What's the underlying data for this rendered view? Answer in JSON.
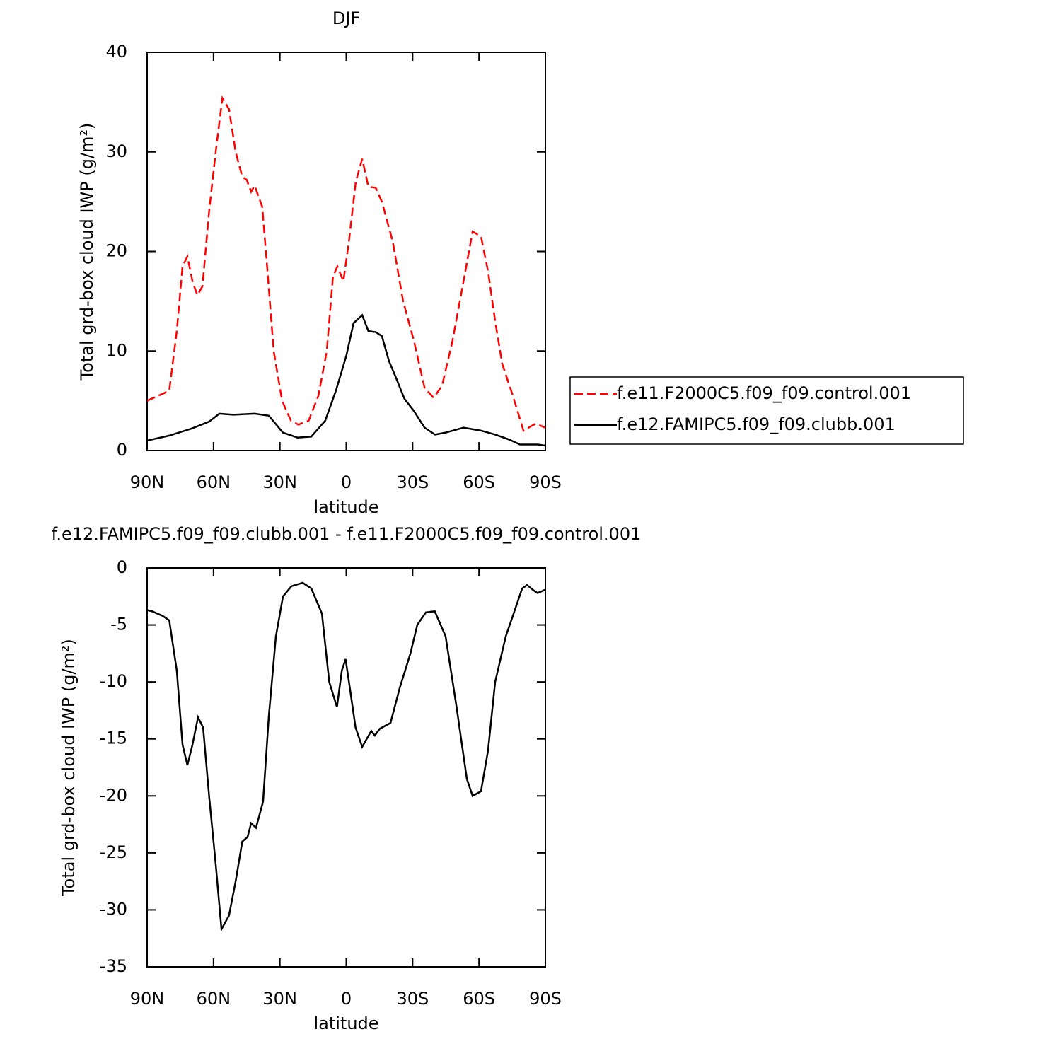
{
  "chart_data": [
    {
      "type": "line",
      "title": "DJF",
      "xlabel": "latitude",
      "ylabel": "Total grd-box cloud IWP (g/m²)",
      "xlim": [
        90,
        -90
      ],
      "xticks": [
        {
          "value": 90,
          "label": "90N"
        },
        {
          "value": 60,
          "label": "60N"
        },
        {
          "value": 30,
          "label": "30N"
        },
        0,
        {
          "value": -30,
          "label": "30S"
        },
        {
          "value": -60,
          "label": "60S"
        },
        {
          "value": -90,
          "label": "90S"
        }
      ],
      "ylim": [
        0,
        40
      ],
      "yticks": [
        0,
        10,
        20,
        30,
        40
      ],
      "series": [
        {
          "name": "f.e11.F2000C5.f09_f09.control.001",
          "color": "#ff0000",
          "dashed": true,
          "x": [
            90,
            80,
            76.6,
            74,
            71.8,
            69.5,
            67.3,
            65,
            62,
            59,
            56,
            53,
            50,
            47,
            45,
            43,
            41.4,
            38,
            35.6,
            32.8,
            29,
            25,
            21.6,
            17,
            12.6,
            8.8,
            6,
            4,
            1.3,
            -1.2,
            -4.3,
            -7.2,
            -10,
            -13.3,
            -16.1,
            -21,
            -25.7,
            -30.6,
            -35.4,
            -39.5,
            -43.3,
            -48,
            -53,
            -57.1,
            -60.9,
            -64.1,
            -67.3,
            -70.5,
            -75.3,
            -80.1,
            -84,
            -85.7,
            -90
          ],
          "values": [
            5.0,
            6.0,
            12,
            18.5,
            19.5,
            17,
            15.6,
            16.5,
            24,
            30,
            35.4,
            34.3,
            30,
            27.5,
            27.2,
            26,
            26.6,
            24.5,
            18,
            10,
            5,
            3,
            2.6,
            3,
            5.5,
            10,
            17.5,
            18.5,
            17,
            21,
            27,
            29.3,
            26.5,
            26.4,
            25,
            21,
            15,
            11,
            6.3,
            5.3,
            6.5,
            11,
            17,
            22,
            21.5,
            18,
            13,
            8.7,
            5.5,
            2,
            2.5,
            2.7,
            2.3
          ]
        },
        {
          "name": "f.e12.FAMIPC5.f09_f09.clubb.001",
          "color": "#000000",
          "dashed": false,
          "x": [
            90,
            80,
            70,
            62,
            57.4,
            51,
            41.4,
            35,
            28.6,
            22,
            15.8,
            9.5,
            4.7,
            0,
            -3.3,
            -7.2,
            -10,
            -13.3,
            -16.1,
            -19.3,
            -22.5,
            -26.3,
            -30.5,
            -35.4,
            -40.1,
            -44.9,
            -53,
            -60.9,
            -67.3,
            -73.7,
            -78.5,
            -86.5,
            -90
          ],
          "values": [
            1.0,
            1.5,
            2.2,
            2.9,
            3.7,
            3.6,
            3.7,
            3.5,
            1.8,
            1.3,
            1.4,
            3.0,
            6.0,
            9.5,
            12.8,
            13.6,
            12.0,
            11.9,
            11.5,
            9,
            7.3,
            5.2,
            4,
            2.3,
            1.6,
            1.8,
            2.3,
            2.0,
            1.6,
            1.1,
            0.6,
            0.6,
            0.5
          ]
        }
      ]
    },
    {
      "type": "line",
      "title": "f.e12.FAMIPC5.f09_f09.clubb.001 - f.e11.F2000C5.f09_f09.control.001",
      "xlabel": "latitude",
      "ylabel": "Total grd-box cloud IWP (g/m²)",
      "xlim": [
        90,
        -90
      ],
      "xticks": [
        {
          "value": 90,
          "label": "90N"
        },
        {
          "value": 60,
          "label": "60N"
        },
        {
          "value": 30,
          "label": "30N"
        },
        0,
        {
          "value": -30,
          "label": "30S"
        },
        {
          "value": -60,
          "label": "60S"
        },
        {
          "value": -90,
          "label": "90S"
        }
      ],
      "ylim": [
        -35,
        0
      ],
      "yticks": [
        0,
        -5,
        -10,
        -15,
        -20,
        -25,
        -30,
        -35
      ],
      "series": [
        {
          "color": "#000000",
          "dashed": false,
          "x": [
            90,
            87.8,
            83,
            80,
            76.6,
            74,
            71.8,
            69.5,
            67,
            64.7,
            62,
            59,
            56.4,
            53,
            50,
            47,
            44.6,
            43,
            40.8,
            37.6,
            35,
            31.8,
            28.6,
            24.8,
            19.7,
            15.8,
            11,
            7.7,
            4.2,
            2,
            0.3,
            -1.6,
            -4.2,
            -7.2,
            -11.3,
            -12.9,
            -15.2,
            -20,
            -24.2,
            -29,
            -32.1,
            -36,
            -40,
            -44.9,
            -49.7,
            -54.5,
            -57.1,
            -60.9,
            -64.1,
            -67.3,
            -72.1,
            -75.3,
            -79.5,
            -81.7,
            -84.9,
            -86.5,
            -90
          ],
          "values": [
            -3.7,
            -3.8,
            -4.2,
            -4.6,
            -9,
            -15.5,
            -17.3,
            -15.5,
            -13.1,
            -14,
            -20,
            -26,
            -31.7,
            -30.5,
            -27.5,
            -24,
            -23.6,
            -22.4,
            -22.8,
            -20.5,
            -13,
            -6,
            -2.5,
            -1.6,
            -1.3,
            -1.8,
            -4,
            -10,
            -12.2,
            -9,
            -8,
            -10.5,
            -14,
            -15.7,
            -14.3,
            -14.7,
            -14.1,
            -13.6,
            -10.5,
            -7.5,
            -5,
            -3.9,
            -3.8,
            -6,
            -12,
            -18.5,
            -20,
            -19.6,
            -16,
            -10,
            -6,
            -4.2,
            -1.8,
            -1.5,
            -2,
            -2.2,
            -1.9
          ]
        }
      ]
    }
  ]
}
